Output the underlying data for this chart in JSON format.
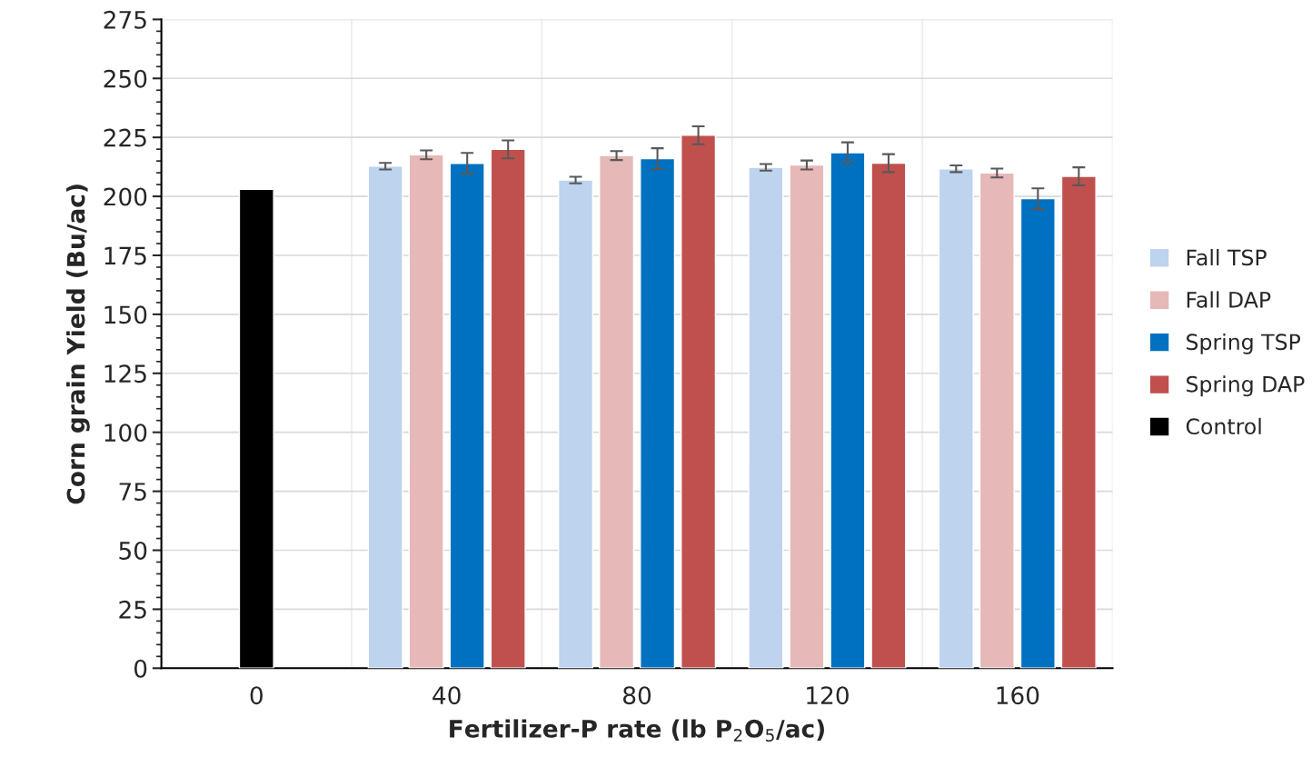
{
  "chart_data": {
    "type": "bar",
    "xlabel": "Fertilizer-P rate (lb P$_{2}$O$_{5}$/ac)",
    "ylabel": "Corn grain Yield (Bu/ac)",
    "categories": [
      "0",
      "40",
      "80",
      "120",
      "160"
    ],
    "series": [
      {
        "name": "Fall TSP",
        "color": "#bdd3ee",
        "values": [
          null,
          212.8,
          206.9,
          212.3,
          211.7
        ],
        "errors": [
          null,
          1.4,
          1.4,
          1.4,
          1.4
        ]
      },
      {
        "name": "Fall DAP",
        "color": "#e6b8b7",
        "values": [
          null,
          217.6,
          217.3,
          213.3,
          209.9
        ],
        "errors": [
          null,
          1.9,
          1.9,
          1.9,
          1.9
        ]
      },
      {
        "name": "Spring TSP",
        "color": "#0070c0",
        "values": [
          null,
          214,
          216,
          218.5,
          199
        ],
        "errors": [
          null,
          4.4,
          4.4,
          4.4,
          4.4
        ]
      },
      {
        "name": "Spring DAP",
        "color": "#c0504d",
        "values": [
          null,
          219.9,
          225.9,
          214.1,
          208.5
        ],
        "errors": [
          null,
          3.8,
          3.8,
          3.8,
          3.8
        ]
      },
      {
        "name": "Control",
        "color": "#000000",
        "values": [
          203,
          null,
          null,
          null,
          null
        ]
      }
    ],
    "ylim": [
      0,
      275
    ],
    "yticks": [
      0,
      25,
      50,
      75,
      100,
      125,
      150,
      175,
      200,
      225,
      250,
      275
    ],
    "grid": true,
    "legend": "right"
  }
}
